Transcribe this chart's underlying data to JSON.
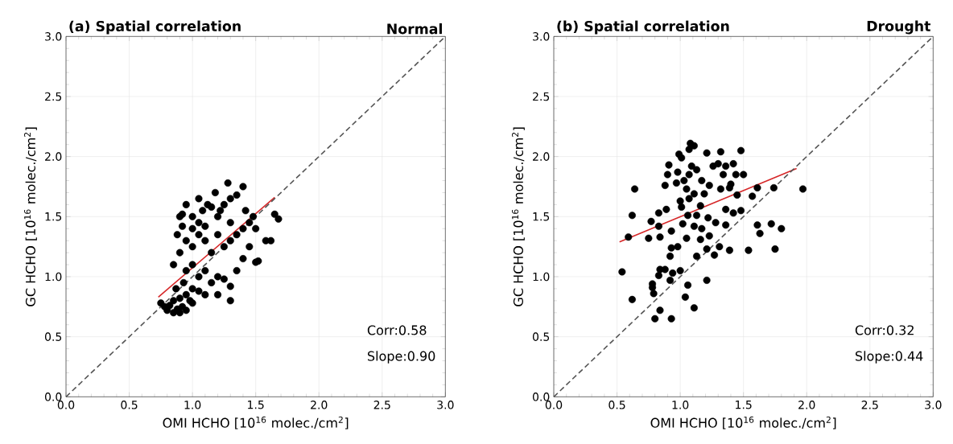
{
  "chart_data": [
    {
      "type": "scatter",
      "title": "(a) Spatial correlation",
      "subtitle": "Normal",
      "xlabel": "OMI HCHO [10$^{16}$ molec./cm$^{2}$]",
      "ylabel": "GC HCHO [10$^{16}$ molec./cm$^{2}$]",
      "annotations": [
        "Corr:0.58",
        "Slope:0.90"
      ],
      "xlim": [
        0,
        3
      ],
      "ylim": [
        0,
        3
      ],
      "xticks": [
        {
          "value": 0,
          "label": "0.0"
        },
        {
          "value": 0.5,
          "label": "0.5"
        },
        {
          "value": 1,
          "label": "1.0"
        },
        {
          "value": 1.5,
          "label": "1.5"
        },
        {
          "value": 2,
          "label": "2.0"
        },
        {
          "value": 2.5,
          "label": "2.5"
        },
        {
          "value": 3,
          "label": "3.0"
        }
      ],
      "yticks": [
        {
          "value": 0,
          "label": "0.0"
        },
        {
          "value": 0.5,
          "label": "0.5"
        },
        {
          "value": 1,
          "label": "1.0"
        },
        {
          "value": 1.5,
          "label": "1.5"
        },
        {
          "value": 2,
          "label": "2.0"
        },
        {
          "value": 2.5,
          "label": "2.5"
        },
        {
          "value": 3,
          "label": "3.0"
        }
      ],
      "grid": true,
      "series": [
        {
          "color": "#000000",
          "marker": "circle",
          "x": [
            0.75,
            0.78,
            0.8,
            0.82,
            0.85,
            0.88,
            0.9,
            0.92,
            0.95,
            0.85,
            0.9,
            0.95,
            0.98,
            1.0,
            0.87,
            0.93,
            1.0,
            1.05,
            0.85,
            0.9,
            0.95,
            1.0,
            1.05,
            1.1,
            1.15,
            1.2,
            1.25,
            1.3,
            1.1,
            1.2,
            1.35,
            1.4,
            1.45,
            1.5,
            1.52,
            1.58,
            1.62,
            1.65,
            1.68,
            1.3,
            0.9,
            0.92,
            0.95,
            1.0,
            1.05,
            1.0,
            1.08,
            1.12,
            1.05,
            1.15,
            1.2,
            1.25,
            1.3,
            1.28,
            1.35,
            1.4,
            1.42,
            1.4,
            1.3,
            1.2,
            1.1,
            0.95,
            0.88,
            1.0,
            1.15,
            1.25,
            1.35,
            1.45,
            1.48,
            1.5,
            0.92,
            1.1,
            1.22,
            1.18,
            1.05,
            1.3
          ],
          "values": [
            0.78,
            0.75,
            0.72,
            0.76,
            0.7,
            0.73,
            0.7,
            0.75,
            0.72,
            0.8,
            0.82,
            0.85,
            0.8,
            0.78,
            0.9,
            0.95,
            0.9,
            0.88,
            1.1,
            1.2,
            1.05,
            1.1,
            1.0,
            1.05,
            0.95,
            1.0,
            0.98,
            0.92,
            0.85,
            0.85,
            1.05,
            1.15,
            1.25,
            1.12,
            1.13,
            1.3,
            1.3,
            1.52,
            1.48,
            0.8,
            1.5,
            1.42,
            1.6,
            1.5,
            1.45,
            1.4,
            1.55,
            1.6,
            1.65,
            1.58,
            1.5,
            1.6,
            1.65,
            1.78,
            1.68,
            1.75,
            1.55,
            1.4,
            1.45,
            1.35,
            1.3,
            1.3,
            1.35,
            1.25,
            1.2,
            1.25,
            1.35,
            1.45,
            1.5,
            1.4,
            1.52,
            1.42,
            1.55,
            1.7,
            1.35,
            1.3
          ]
        },
        {
          "type": "line",
          "color": "#d62728",
          "line_style": "solid",
          "marker": "none",
          "x": [
            0.73,
            1.65
          ],
          "values": [
            0.83,
            1.66
          ]
        },
        {
          "type": "line",
          "color": "#555555",
          "line_style": "dashed",
          "marker": "none",
          "x": [
            0,
            3
          ],
          "values": [
            0,
            3
          ]
        }
      ]
    },
    {
      "type": "scatter",
      "title": "(b) Spatial correlation",
      "subtitle": "Drought",
      "xlabel": "OMI HCHO [10$^{16}$ molec./cm$^{2}$]",
      "ylabel": "GC HCHO [10$^{16}$ molec./cm$^{2}$]",
      "annotations": [
        "Corr:0.32",
        "Slope:0.44"
      ],
      "xlim": [
        0,
        3
      ],
      "ylim": [
        0,
        3
      ],
      "xticks": [
        {
          "value": 0,
          "label": "0.0"
        },
        {
          "value": 0.5,
          "label": "0.5"
        },
        {
          "value": 1,
          "label": "1.0"
        },
        {
          "value": 1.5,
          "label": "1.5"
        },
        {
          "value": 2,
          "label": "2.0"
        },
        {
          "value": 2.5,
          "label": "2.5"
        },
        {
          "value": 3,
          "label": "3.0"
        }
      ],
      "yticks": [
        {
          "value": 0,
          "label": "0.0"
        },
        {
          "value": 0.5,
          "label": "0.5"
        },
        {
          "value": 1,
          "label": "1.0"
        },
        {
          "value": 1.5,
          "label": "1.5"
        },
        {
          "value": 2,
          "label": "2.0"
        },
        {
          "value": 2.5,
          "label": "2.5"
        },
        {
          "value": 3,
          "label": "3.0"
        }
      ],
      "grid": true,
      "series": [
        {
          "color": "#000000",
          "marker": "circle",
          "x": [
            1.08,
            1.11,
            1.07,
            0.99,
            1.01,
            1.21,
            1.32,
            1.48,
            0.91,
            0.9,
            0.98,
            0.97,
            0.88,
            1.09,
            1.07,
            1.13,
            1.17,
            1.03,
            1.05,
            1.11,
            1.19,
            1.23,
            1.26,
            1.3,
            1.36,
            1.42,
            1.44,
            1.5,
            1.34,
            1.32,
            1.39,
            1.45,
            1.4,
            1.0,
            1.07,
            1.01,
            0.64,
            0.62,
            0.59,
            0.77,
            0.83,
            0.89,
            0.83,
            0.75,
            0.84,
            0.93,
            1.02,
            1.06,
            1.13,
            1.16,
            1.22,
            1.11,
            1.17,
            1.16,
            1.23,
            1.28,
            1.36,
            1.36,
            1.42,
            1.48,
            1.57,
            1.61,
            1.74,
            1.97,
            1.61,
            1.63,
            1.72,
            1.8,
            1.75,
            1.54,
            1.39,
            1.31,
            1.27,
            1.21,
            1.13,
            1.05,
            0.98,
            0.93,
            0.92,
            1.0,
            0.94,
            0.88,
            0.84,
            0.83,
            0.92,
            1.21,
            0.54,
            0.78,
            0.78,
            0.79,
            1.06,
            1.04,
            1.11,
            0.62,
            0.84,
            0.8,
            0.93
          ],
          "values": [
            2.11,
            2.09,
            2.06,
            2.02,
            1.99,
            2.03,
            2.04,
            2.05,
            1.93,
            1.85,
            1.87,
            1.78,
            1.76,
            1.92,
            1.85,
            1.89,
            1.8,
            1.8,
            1.73,
            1.69,
            1.69,
            1.76,
            1.92,
            1.94,
            1.92,
            1.94,
            1.85,
            1.85,
            1.85,
            1.73,
            1.74,
            1.68,
            1.77,
            1.63,
            1.65,
            1.58,
            1.73,
            1.51,
            1.33,
            1.46,
            1.53,
            1.56,
            1.42,
            1.32,
            1.33,
            1.38,
            1.44,
            1.51,
            1.51,
            1.59,
            1.49,
            1.42,
            1.4,
            1.31,
            1.34,
            1.45,
            1.56,
            1.43,
            1.53,
            1.55,
            1.67,
            1.74,
            1.74,
            1.73,
            1.43,
            1.36,
            1.44,
            1.4,
            1.23,
            1.22,
            1.22,
            1.25,
            1.18,
            1.23,
            1.17,
            1.32,
            1.25,
            1.24,
            1.17,
            1.05,
            1.03,
            1.06,
            1.06,
            1.01,
            0.97,
            0.97,
            1.04,
            0.94,
            0.91,
            0.86,
            0.93,
            0.83,
            0.74,
            0.81,
            0.72,
            0.65,
            0.65
          ]
        },
        {
          "type": "line",
          "color": "#d62728",
          "line_style": "solid",
          "marker": "none",
          "x": [
            0.52,
            1.92
          ],
          "values": [
            1.29,
            1.9
          ]
        },
        {
          "type": "line",
          "color": "#555555",
          "line_style": "dashed",
          "marker": "none",
          "x": [
            0,
            3
          ],
          "values": [
            0,
            3
          ]
        }
      ]
    }
  ]
}
